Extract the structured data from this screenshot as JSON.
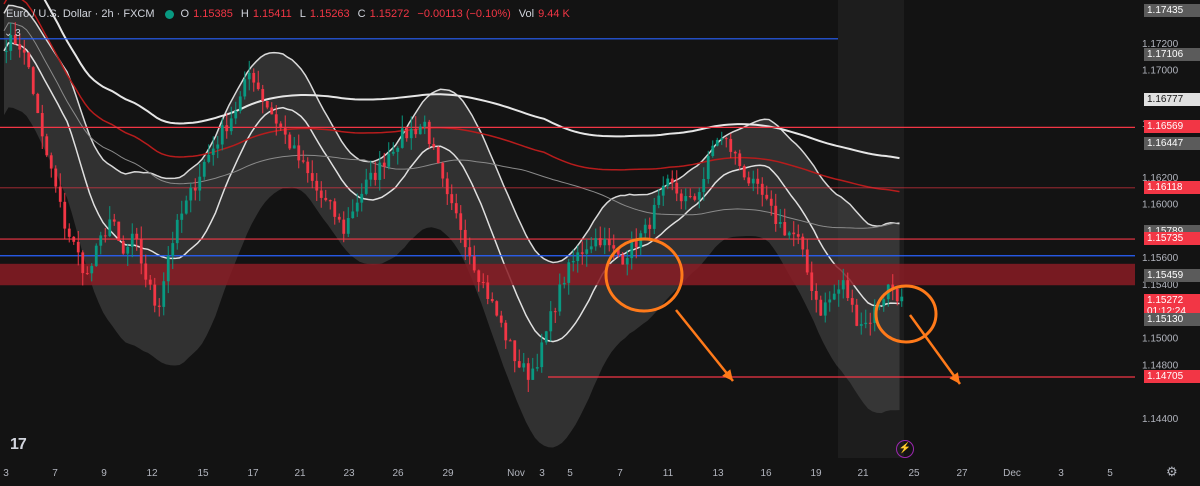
{
  "legend": {
    "symbol": "Euro / U.S. Dollar · 2h · FXCM",
    "open_label": "O",
    "open": "1.15385",
    "high_label": "H",
    "high": "1.15411",
    "low_label": "L",
    "low": "1.15263",
    "close_label": "C",
    "close": "1.15272",
    "change": "−0.00113 (−0.10%)",
    "vol_label": "Vol",
    "volume": "9.44 K"
  },
  "indicators_count": "3",
  "icons": {
    "logo": "tradingview-logo-icon",
    "replay": "lightning-icon",
    "settings": "gear-icon",
    "collapse": "chevron-down-icon"
  },
  "colors": {
    "background": "#131313",
    "up": "#089981",
    "down": "#f23645",
    "band": "#5a5a5a",
    "arrow": "#ff7a1a",
    "sr_line": "#f23645",
    "blue_line": "#2962ff"
  },
  "chart_data": {
    "type": "candlestick",
    "symbol": "EURUSD",
    "timeframe": "2h",
    "y_range": [
      1.141,
      1.1752
    ],
    "y_ticks": [
      "1.17200",
      "1.17000",
      "1.16600",
      "1.16200",
      "1.16000",
      "1.15600",
      "1.15400",
      "1.15000",
      "1.14800",
      "1.14400"
    ],
    "x_ticks": [
      "3",
      "7",
      "9",
      "12",
      "15",
      "17",
      "21",
      "23",
      "26",
      "29",
      "Nov",
      "3",
      "5",
      "7",
      "11",
      "13",
      "16",
      "19",
      "21",
      "25",
      "27",
      "Dec",
      "3",
      "5"
    ],
    "price_labels": [
      {
        "value": "1.17435",
        "kind": "grey"
      },
      {
        "value": "1.17106",
        "kind": "grey"
      },
      {
        "value": "1.16777",
        "kind": "white"
      },
      {
        "value": "1.16569",
        "kind": "red"
      },
      {
        "value": "1.16447",
        "kind": "grey"
      },
      {
        "value": "1.16118",
        "kind": "red"
      },
      {
        "value": "1.15789",
        "kind": "grey"
      },
      {
        "value": "1.15735",
        "kind": "red"
      },
      {
        "value": "1.15459",
        "kind": "grey"
      },
      {
        "value": "1.15272",
        "kind": "current",
        "timer": "01:12:24"
      },
      {
        "value": "1.15130",
        "kind": "grey"
      },
      {
        "value": "1.14705",
        "kind": "red"
      }
    ],
    "horizontal_levels": {
      "red": [
        1.16569,
        1.15735,
        1.14705,
        1.16118
      ],
      "blue": [
        1.1723,
        1.1561
      ],
      "zone": [
        1.1539,
        1.1555
      ]
    },
    "path": [
      1.172,
      1.1722,
      1.17,
      1.165,
      1.162,
      1.1585,
      1.1565,
      1.1545,
      1.157,
      1.159,
      1.156,
      1.1575,
      1.1545,
      1.152,
      1.1565,
      1.159,
      1.161,
      1.163,
      1.1645,
      1.166,
      1.1675,
      1.17,
      1.168,
      1.1665,
      1.165,
      1.1635,
      1.162,
      1.1605,
      1.1595,
      1.158,
      1.16,
      1.1615,
      1.1625,
      1.164,
      1.165,
      1.1655,
      1.166,
      1.163,
      1.16,
      1.1585,
      1.156,
      1.154,
      1.152,
      1.15,
      1.148,
      1.1472,
      1.149,
      1.152,
      1.1545,
      1.156,
      1.157,
      1.1575,
      1.1565,
      1.156,
      1.157,
      1.158,
      1.16,
      1.1615,
      1.1605,
      1.16,
      1.162,
      1.165,
      1.1645,
      1.163,
      1.1615,
      1.1605,
      1.159,
      1.158,
      1.1575,
      1.1545,
      1.152,
      1.153,
      1.154,
      1.1515,
      1.151,
      1.1525,
      1.154,
      1.15272
    ]
  }
}
